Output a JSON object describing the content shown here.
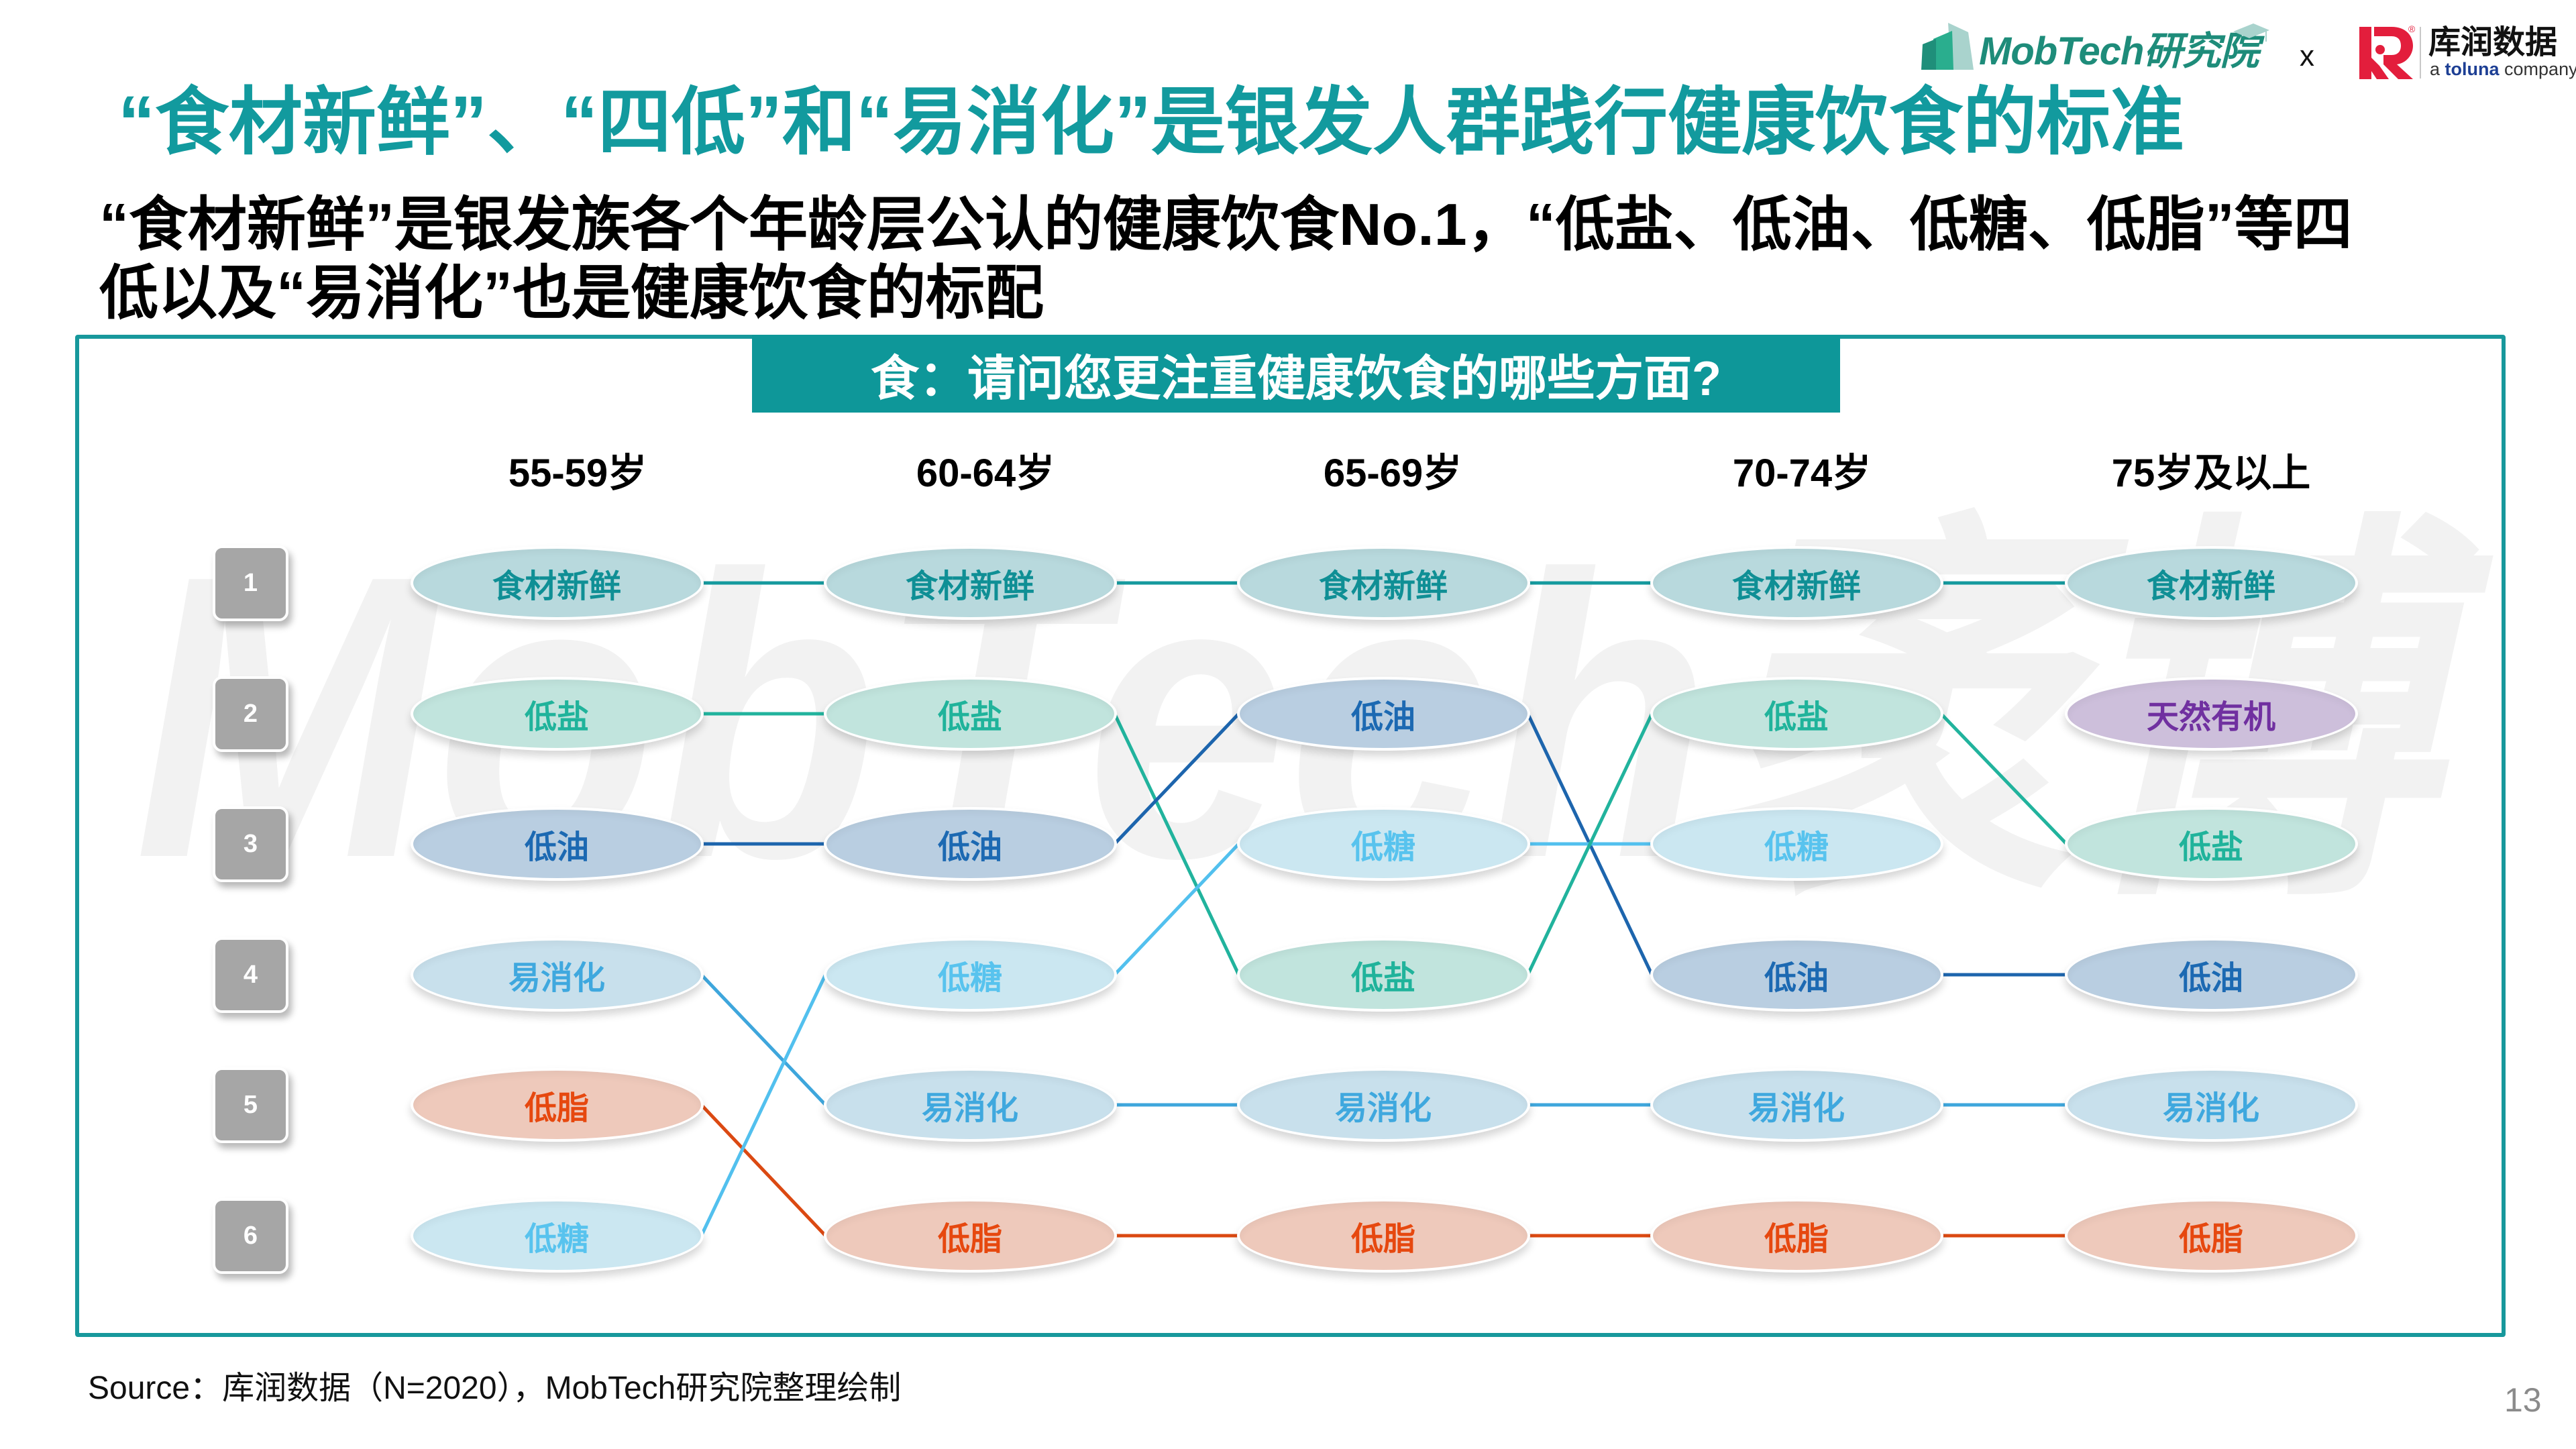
{
  "header": {
    "logo_mobtech": "MobTech研究院",
    "logo_separator": "x",
    "logo_kuran_cn": "库润数据",
    "logo_kuran_reg": "®",
    "logo_kuran_en_prefix": "a ",
    "logo_kuran_en_brand": "toluna",
    "logo_kuran_en_suffix": " company"
  },
  "title": "“食材新鲜”、“四低”和“易消化”是银发人群践行健康饮食的标准",
  "subtitle_lines": [
    "“食材新鲜”是银发族各个年龄层公认的健康饮食No.1，“低盐、低油、低糖、低脂”等四",
    "低以及“易消化”也是健康饮食的标配"
  ],
  "chart_panel": {
    "question": "食：请问您更注重健康饮食的哪些方面?",
    "watermark": "MobTech袤博"
  },
  "chart_data": {
    "type": "table",
    "subtype": "rank-bump",
    "title": "食：请问您更注重健康饮食的哪些方面?",
    "row_labels": [
      "1",
      "2",
      "3",
      "4",
      "5",
      "6"
    ],
    "columns": [
      {
        "label": "55-59岁",
        "items": [
          "食材新鲜",
          "低盐",
          "低油",
          "易消化",
          "低脂",
          "低糖"
        ]
      },
      {
        "label": "60-64岁",
        "items": [
          "食材新鲜",
          "低盐",
          "低油",
          "低糖",
          "易消化",
          "低脂"
        ]
      },
      {
        "label": "65-69岁",
        "items": [
          "食材新鲜",
          "低油",
          "低糖",
          "低盐",
          "易消化",
          "低脂"
        ]
      },
      {
        "label": "70-74岁",
        "items": [
          "食材新鲜",
          "低盐",
          "低糖",
          "低油",
          "易消化",
          "低脂"
        ]
      },
      {
        "label": "75岁及以上",
        "items": [
          "食材新鲜",
          "天然有机",
          "低盐",
          "低油",
          "易消化",
          "低脂"
        ]
      }
    ],
    "item_styles": {
      "食材新鲜": {
        "fill": "#B8D9DD",
        "text": "#0F8F95",
        "line": "#159A9E"
      },
      "低盐": {
        "fill": "#C1E4DD",
        "text": "#20B39B",
        "line": "#21B39D"
      },
      "低油": {
        "fill": "#B9CEE1",
        "text": "#1C69B2",
        "line": "#1D65AD"
      },
      "易消化": {
        "fill": "#C8E0EC",
        "text": "#3FA8DE",
        "line": "#3EA6DC"
      },
      "低脂": {
        "fill": "#EEC9BB",
        "text": "#E6480F",
        "line": "#DB4912"
      },
      "低糖": {
        "fill": "#CBE7F1",
        "text": "#58C3EE",
        "line": "#52C0EE"
      },
      "天然有机": {
        "fill": "#CDBFDB",
        "text": "#7030A0",
        "line": "#7030A0"
      }
    }
  },
  "footer": {
    "source": "Source：库润数据（N=2020），MobTech研究院整理绘制",
    "page_number": "13"
  },
  "colors": {
    "brand_teal": "#129A9E",
    "panel_border": "#17989C",
    "question_banner": "#0E9799",
    "rank_badge": "#A6A6A6",
    "kuran_red": "#E31E3C",
    "toluna_blue": "#1D3F94"
  }
}
